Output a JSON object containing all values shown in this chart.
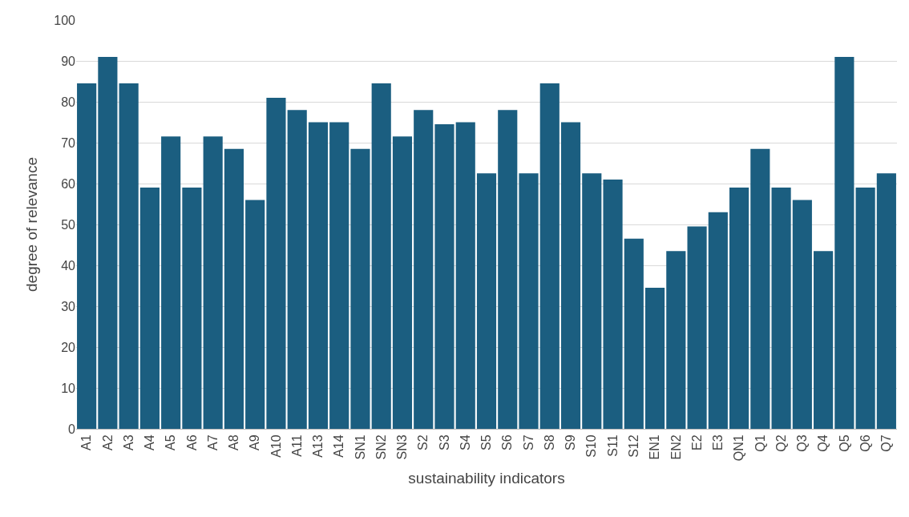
{
  "chart_data": {
    "type": "bar",
    "xlabel": "sustainability indicators",
    "ylabel": "degree of relevance",
    "categories": [
      "A1",
      "A2",
      "A3",
      "A4",
      "A5",
      "A6",
      "A7",
      "A8",
      "A9",
      "A10",
      "A11",
      "A13",
      "A14",
      "SN1",
      "SN2",
      "SN3",
      "S2",
      "S3",
      "S4",
      "S5",
      "S6",
      "S7",
      "S8",
      "S9",
      "S10",
      "S11",
      "S12",
      "EN1",
      "EN2",
      "E2",
      "E3",
      "QN1",
      "Q1",
      "Q2",
      "Q3",
      "Q4",
      "Q5",
      "Q6",
      "Q7"
    ],
    "values": [
      84.5,
      91,
      84.5,
      59,
      71.5,
      59,
      71.5,
      68.5,
      56,
      81,
      78,
      75,
      75,
      68.5,
      84.5,
      71.5,
      78,
      74.5,
      75,
      62.5,
      78,
      62.5,
      84.5,
      75,
      62.5,
      61,
      46.5,
      34.5,
      43.5,
      49.5,
      53,
      59,
      68.5,
      59,
      56,
      43.5,
      91,
      59,
      62.5
    ],
    "color": "#1b5e80",
    "ylim": [
      0,
      100
    ],
    "yticks": [
      0,
      10,
      20,
      30,
      40,
      50,
      60,
      70,
      80,
      90,
      100
    ],
    "grid": "y"
  }
}
